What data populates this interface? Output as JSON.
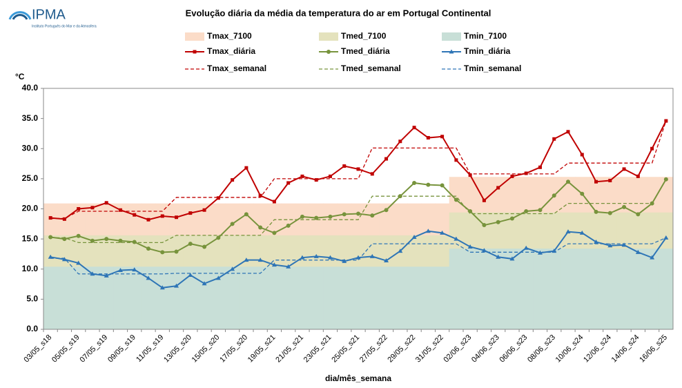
{
  "logo": {
    "name": "IPMA",
    "subtitle": "Instituto Português do Mar e da Atmosfera"
  },
  "chart_data": {
    "type": "line",
    "title": "Evolução diária da média da temperatura do ar em Portugal Continental",
    "y_label": "°C",
    "x_label": "dia/mês_semana",
    "categories": [
      "03/05_s18",
      null,
      "05/05_s19",
      null,
      "07/05_s19",
      null,
      "09/05_s19",
      null,
      "11/05_s19",
      null,
      "13/05_s20",
      null,
      "15/05_s20",
      null,
      "17/05_s20",
      null,
      "19/05_s21",
      null,
      "21/05_s21",
      null,
      "23/05_s21",
      null,
      "25/05_s21",
      null,
      "27/05_s22",
      null,
      "29/05_s22",
      null,
      "31/05_s22",
      null,
      "02/06_s23",
      null,
      "04/06_s23",
      null,
      "06/06_s23",
      null,
      "08/06_s23",
      null,
      "10/06_s24",
      null,
      "12/06_s24",
      null,
      "14/06_s24",
      null,
      "16/06_s25"
    ],
    "ylim": [
      0,
      40
    ],
    "yticks": [
      {
        "value": 0,
        "label": "0.0"
      },
      {
        "value": 5,
        "label": "5.0"
      },
      {
        "value": 10,
        "label": "10.0"
      },
      {
        "value": 15,
        "label": "15.0"
      },
      {
        "value": 20,
        "label": "20.0"
      },
      {
        "value": 25,
        "label": "25.0"
      },
      {
        "value": 30,
        "label": "30.0"
      },
      {
        "value": 35,
        "label": "35.0"
      },
      {
        "value": 40,
        "label": "40.0"
      }
    ],
    "series": [
      {
        "name": "Tmax_7100",
        "style": "area",
        "color": "#fbdcc8",
        "values": [
          20.9,
          20.9,
          20.9,
          20.9,
          20.9,
          20.9,
          20.9,
          20.9,
          20.9,
          20.9,
          20.9,
          20.9,
          20.9,
          20.9,
          20.9,
          20.9,
          20.9,
          20.9,
          20.9,
          20.9,
          20.9,
          20.9,
          20.9,
          20.9,
          20.9,
          20.9,
          20.9,
          20.9,
          20.9,
          25.3,
          25.3,
          25.3,
          25.3,
          25.3,
          25.3,
          25.3,
          25.3,
          25.3,
          25.3,
          25.3,
          25.3,
          25.3,
          25.3,
          25.3,
          25.3
        ]
      },
      {
        "name": "Tmed_7100",
        "style": "area",
        "color": "#e4e2bd",
        "values": [
          15.6,
          15.6,
          15.6,
          15.6,
          15.6,
          15.6,
          15.6,
          15.6,
          15.6,
          15.6,
          15.6,
          15.6,
          15.6,
          15.6,
          15.6,
          15.6,
          15.6,
          15.6,
          15.6,
          15.6,
          15.6,
          15.6,
          15.6,
          15.6,
          15.6,
          15.6,
          15.6,
          15.6,
          15.6,
          19.4,
          19.4,
          19.4,
          19.4,
          19.4,
          19.4,
          19.4,
          19.4,
          19.4,
          19.4,
          19.4,
          19.4,
          19.4,
          19.4,
          19.4,
          19.4
        ]
      },
      {
        "name": "Tmin_7100",
        "style": "area",
        "color": "#c8dfd7",
        "values": [
          10.4,
          10.4,
          10.4,
          10.4,
          10.4,
          10.4,
          10.4,
          10.4,
          10.4,
          10.4,
          10.4,
          10.4,
          10.4,
          10.4,
          10.4,
          10.4,
          10.4,
          10.4,
          10.4,
          10.4,
          10.4,
          10.4,
          10.4,
          10.4,
          10.4,
          10.4,
          10.4,
          10.4,
          10.4,
          13.4,
          13.4,
          13.4,
          13.4,
          13.4,
          13.4,
          13.4,
          13.4,
          13.4,
          13.4,
          13.4,
          13.4,
          13.4,
          13.4,
          13.4,
          13.4
        ]
      },
      {
        "name": "Tmax_diária",
        "style": "line",
        "marker": "square",
        "color": "#c00000",
        "values": [
          18.5,
          18.3,
          20.0,
          20.2,
          21.0,
          19.8,
          19.0,
          18.2,
          18.8,
          18.6,
          19.3,
          19.8,
          21.8,
          24.8,
          26.8,
          22.2,
          21.2,
          24.3,
          25.4,
          24.8,
          25.4,
          27.1,
          26.6,
          25.8,
          28.3,
          31.2,
          33.5,
          31.8,
          32.0,
          28.1,
          25.6,
          21.4,
          23.5,
          25.4,
          25.9,
          26.9,
          31.6,
          32.8,
          29.0,
          24.5,
          24.7,
          26.6,
          25.4,
          30.0,
          34.6
        ]
      },
      {
        "name": "Tmed_diária",
        "style": "line",
        "marker": "circle",
        "color": "#77933c",
        "values": [
          15.3,
          15.0,
          15.5,
          14.7,
          15.0,
          14.7,
          14.5,
          13.4,
          12.8,
          12.9,
          14.2,
          13.7,
          15.2,
          17.5,
          19.1,
          16.9,
          16.0,
          17.2,
          18.7,
          18.5,
          18.7,
          19.1,
          19.2,
          18.9,
          19.8,
          22.1,
          24.3,
          24.0,
          23.9,
          21.5,
          19.6,
          17.3,
          17.8,
          18.4,
          19.6,
          19.8,
          22.2,
          24.5,
          22.5,
          19.5,
          19.3,
          20.3,
          19.1,
          20.9,
          24.9
        ]
      },
      {
        "name": "Tmin_diária",
        "style": "line",
        "marker": "triangle",
        "color": "#2e75b6",
        "values": [
          12.0,
          11.6,
          11.0,
          9.2,
          8.9,
          9.8,
          9.9,
          8.5,
          6.9,
          7.2,
          9.0,
          7.6,
          8.5,
          10.0,
          11.5,
          11.5,
          10.7,
          10.4,
          11.9,
          12.1,
          11.9,
          11.3,
          11.9,
          12.1,
          11.4,
          13.0,
          15.3,
          16.3,
          16.0,
          15.0,
          13.7,
          13.1,
          12.0,
          11.7,
          13.5,
          12.7,
          13.0,
          16.2,
          16.0,
          14.5,
          13.9,
          14.0,
          12.8,
          11.9,
          15.2
        ]
      },
      {
        "name": "Tmax_semanal",
        "style": "dashed",
        "color": "#c00000",
        "values": [
          18.4,
          18.4,
          19.6,
          19.6,
          19.6,
          19.6,
          19.6,
          19.6,
          19.6,
          21.9,
          21.9,
          21.9,
          21.9,
          21.9,
          21.9,
          21.9,
          25.0,
          25.0,
          25.0,
          25.0,
          25.0,
          25.0,
          25.0,
          30.1,
          30.1,
          30.1,
          30.1,
          30.1,
          30.1,
          30.1,
          25.8,
          25.8,
          25.8,
          25.8,
          25.8,
          25.8,
          25.8,
          27.6,
          27.6,
          27.6,
          27.6,
          27.6,
          27.6,
          27.6,
          34.6
        ]
      },
      {
        "name": "Tmed_semanal",
        "style": "dashed",
        "color": "#77933c",
        "values": [
          15.2,
          15.2,
          14.4,
          14.4,
          14.4,
          14.4,
          14.4,
          14.4,
          14.4,
          15.6,
          15.6,
          15.6,
          15.6,
          15.6,
          15.6,
          15.6,
          18.2,
          18.2,
          18.2,
          18.2,
          18.2,
          18.2,
          18.2,
          22.1,
          22.1,
          22.1,
          22.1,
          22.1,
          22.1,
          22.1,
          19.2,
          19.2,
          19.2,
          19.2,
          19.2,
          19.2,
          19.2,
          20.9,
          20.9,
          20.9,
          20.9,
          20.9,
          20.9,
          20.9,
          24.9
        ]
      },
      {
        "name": "Tmin_semanal",
        "style": "dashed",
        "color": "#2e75b6",
        "values": [
          11.8,
          11.8,
          9.2,
          9.2,
          9.2,
          9.2,
          9.2,
          9.2,
          9.2,
          9.3,
          9.3,
          9.3,
          9.3,
          9.3,
          9.3,
          9.3,
          11.5,
          11.5,
          11.5,
          11.5,
          11.5,
          11.5,
          11.5,
          14.2,
          14.2,
          14.2,
          14.2,
          14.2,
          14.2,
          14.2,
          12.8,
          12.8,
          12.8,
          12.8,
          12.8,
          12.8,
          12.8,
          14.2,
          14.2,
          14.2,
          14.2,
          14.2,
          14.2,
          14.2,
          15.2
        ]
      }
    ]
  }
}
